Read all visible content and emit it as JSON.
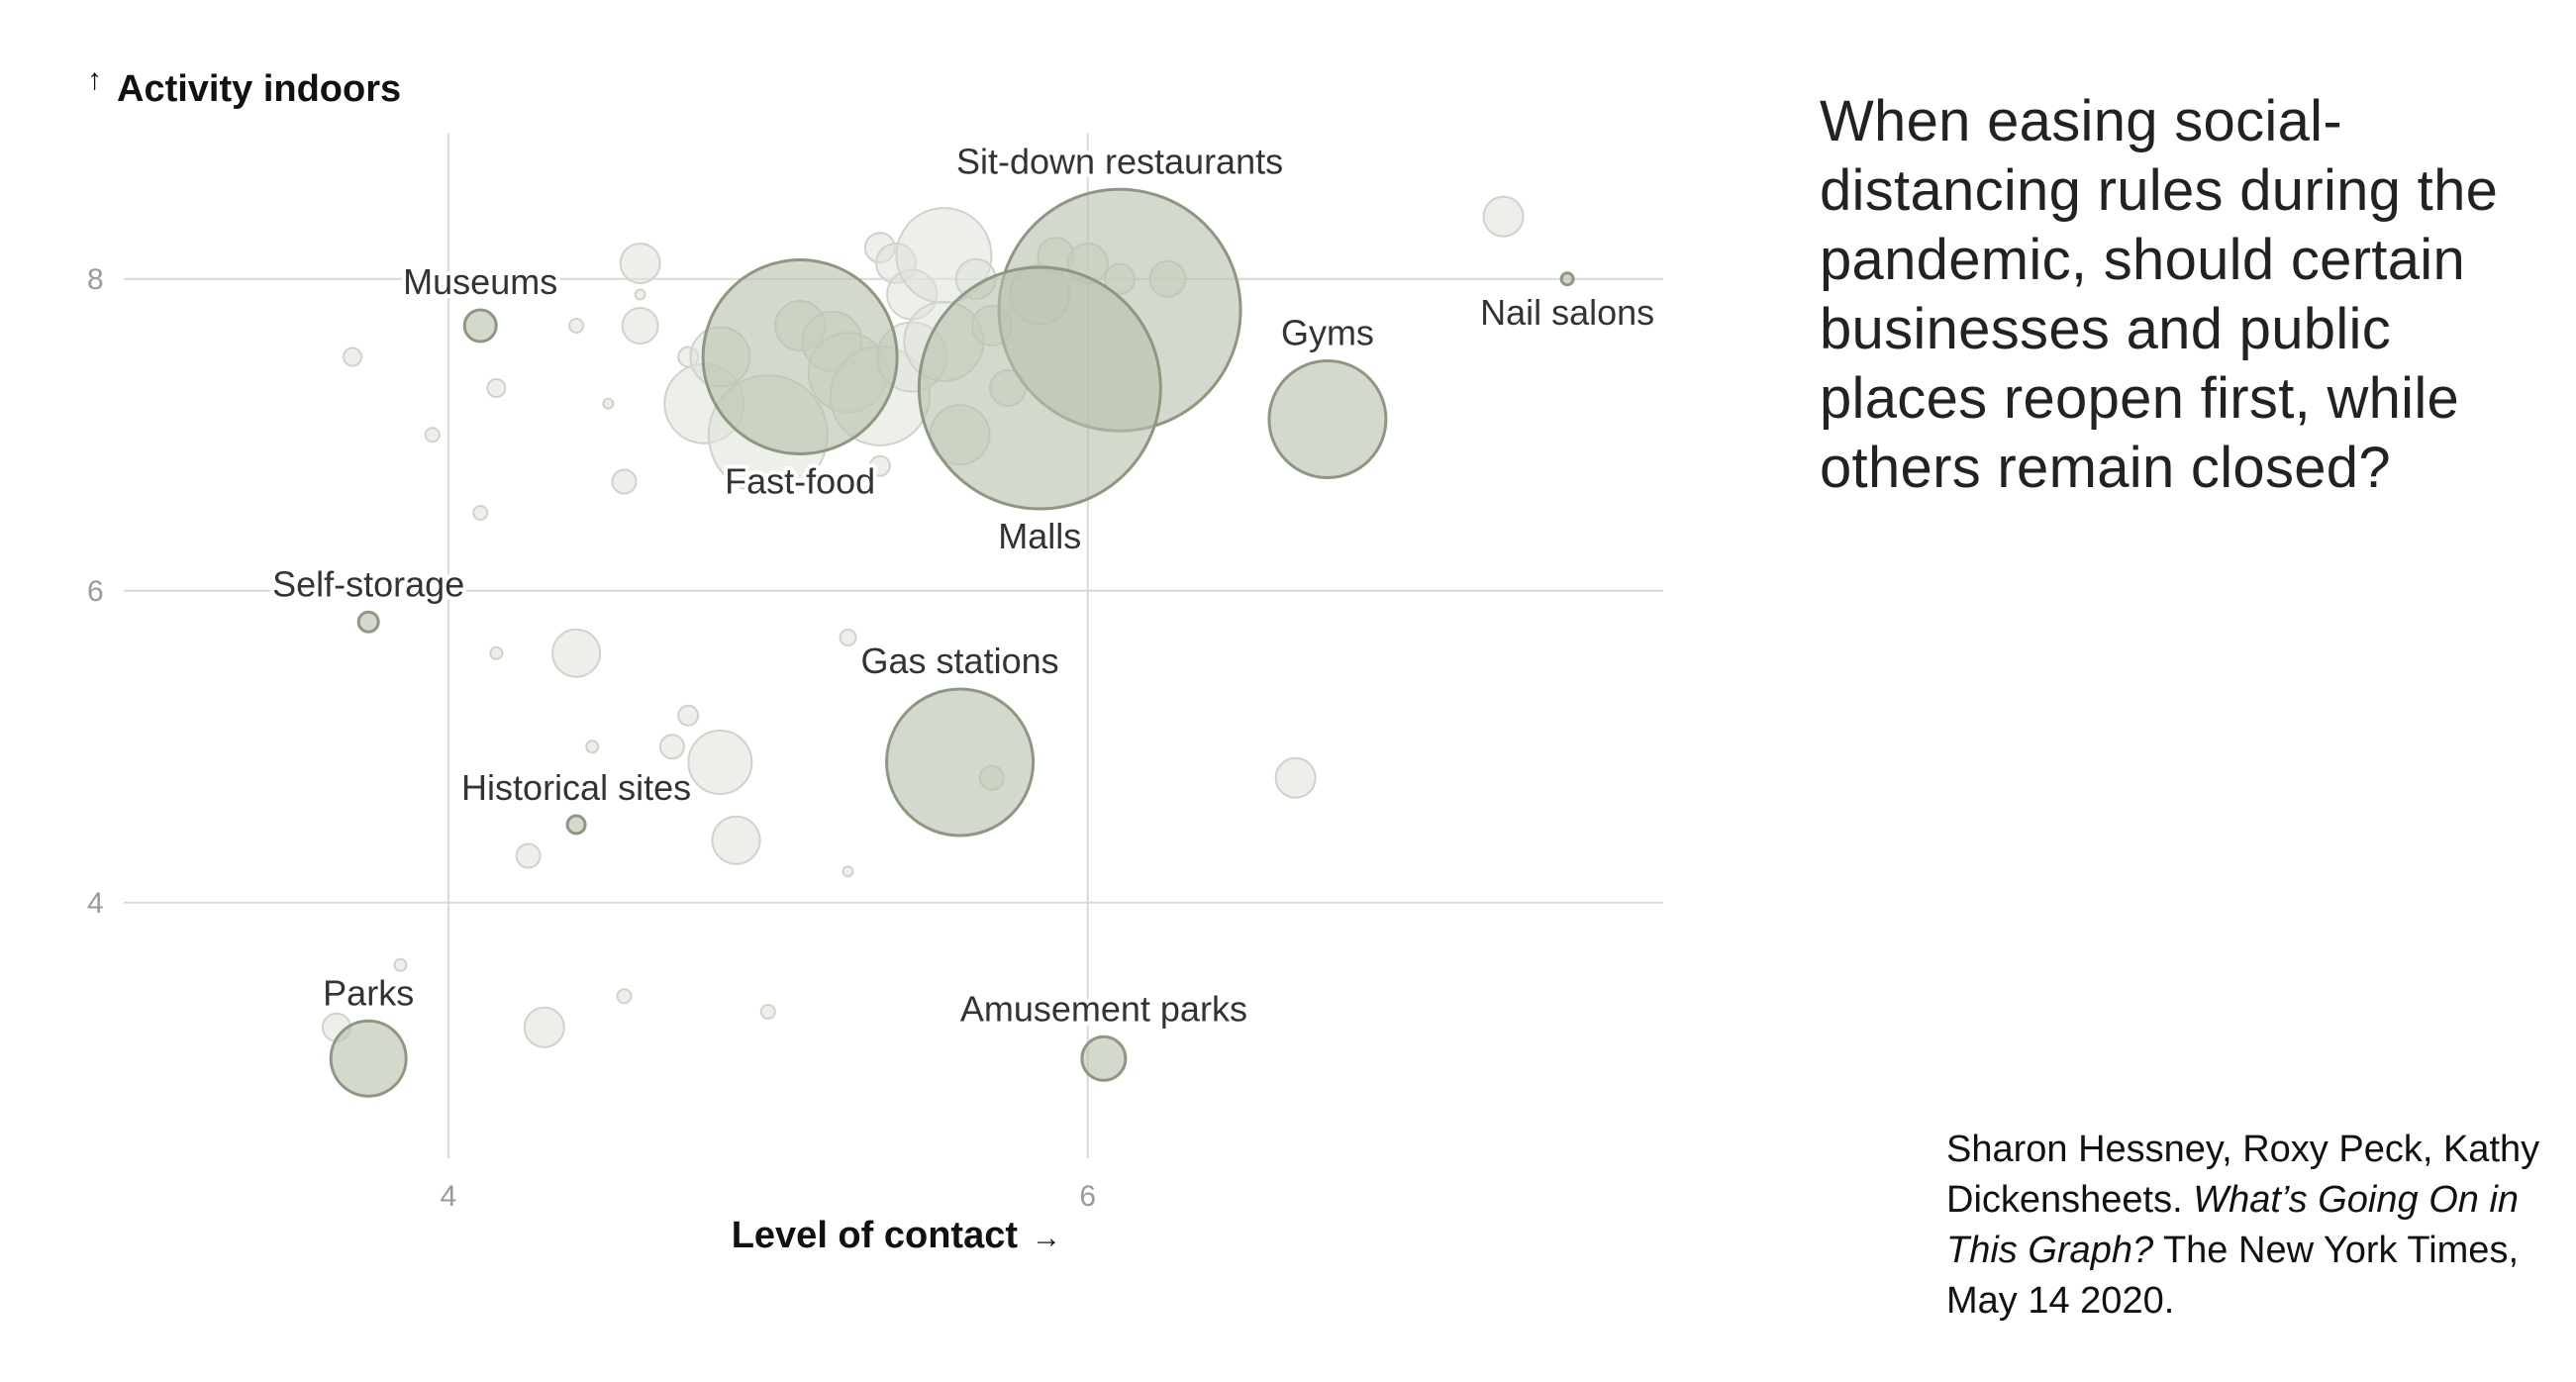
{
  "chart_data": {
    "type": "scatter",
    "title": "",
    "xlabel": "Level of contact",
    "ylabel": "Activity indoors",
    "x_ticks": [
      "4",
      "6"
    ],
    "y_ticks": [
      "8",
      "6",
      "4"
    ],
    "xlim": [
      3.0,
      7.8
    ],
    "ylim": [
      2.5,
      8.9
    ],
    "grid": true,
    "point_color": "#b8c2ac",
    "point_stroke": "#8c9980",
    "background_point_color": "#dfe2da",
    "labeled_points": [
      {
        "name": "Museums",
        "x": 4.1,
        "y": 7.7,
        "size": 16,
        "label_pos": "above"
      },
      {
        "name": "Self-storage",
        "x": 3.75,
        "y": 5.8,
        "size": 10,
        "label_pos": "above"
      },
      {
        "name": "Historical sites",
        "x": 4.4,
        "y": 4.5,
        "size": 9,
        "label_pos": "above"
      },
      {
        "name": "Parks",
        "x": 3.75,
        "y": 3.0,
        "size": 38,
        "label_pos": "above"
      },
      {
        "name": "Fast-food",
        "x": 5.1,
        "y": 7.5,
        "size": 98,
        "label_pos": "below"
      },
      {
        "name": "Sit-down restaurants",
        "x": 6.1,
        "y": 7.8,
        "size": 122,
        "label_pos": "above"
      },
      {
        "name": "Malls",
        "x": 5.85,
        "y": 7.3,
        "size": 122,
        "label_pos": "below"
      },
      {
        "name": "Gyms",
        "x": 6.75,
        "y": 7.1,
        "size": 59,
        "label_pos": "above"
      },
      {
        "name": "Nail salons",
        "x": 7.5,
        "y": 8.0,
        "size": 6,
        "label_pos": "below"
      },
      {
        "name": "Gas stations",
        "x": 5.6,
        "y": 4.9,
        "size": 74,
        "label_pos": "above"
      },
      {
        "name": "Amusement parks",
        "x": 6.05,
        "y": 3.0,
        "size": 22,
        "label_pos": "above"
      }
    ],
    "background_points": [
      {
        "x": 3.7,
        "y": 7.5,
        "size": 9
      },
      {
        "x": 3.95,
        "y": 7.0,
        "size": 7
      },
      {
        "x": 4.15,
        "y": 7.3,
        "size": 9
      },
      {
        "x": 4.1,
        "y": 6.5,
        "size": 7
      },
      {
        "x": 4.4,
        "y": 7.7,
        "size": 7
      },
      {
        "x": 4.5,
        "y": 7.2,
        "size": 5
      },
      {
        "x": 4.55,
        "y": 6.7,
        "size": 12
      },
      {
        "x": 4.6,
        "y": 8.1,
        "size": 20
      },
      {
        "x": 4.6,
        "y": 7.7,
        "size": 18
      },
      {
        "x": 4.6,
        "y": 7.9,
        "size": 5
      },
      {
        "x": 4.75,
        "y": 7.5,
        "size": 10
      },
      {
        "x": 4.8,
        "y": 7.2,
        "size": 40
      },
      {
        "x": 4.85,
        "y": 7.5,
        "size": 30
      },
      {
        "x": 5.0,
        "y": 7.0,
        "size": 60
      },
      {
        "x": 5.1,
        "y": 7.7,
        "size": 25
      },
      {
        "x": 5.2,
        "y": 7.6,
        "size": 30
      },
      {
        "x": 5.25,
        "y": 7.4,
        "size": 40
      },
      {
        "x": 5.35,
        "y": 7.25,
        "size": 50
      },
      {
        "x": 5.35,
        "y": 8.2,
        "size": 15
      },
      {
        "x": 5.4,
        "y": 8.1,
        "size": 20
      },
      {
        "x": 5.45,
        "y": 7.9,
        "size": 25
      },
      {
        "x": 5.45,
        "y": 7.5,
        "size": 35
      },
      {
        "x": 5.55,
        "y": 8.15,
        "size": 48
      },
      {
        "x": 5.55,
        "y": 7.6,
        "size": 40
      },
      {
        "x": 5.6,
        "y": 7.0,
        "size": 30
      },
      {
        "x": 5.65,
        "y": 8.0,
        "size": 20
      },
      {
        "x": 5.7,
        "y": 7.7,
        "size": 20
      },
      {
        "x": 5.75,
        "y": 7.3,
        "size": 18
      },
      {
        "x": 5.85,
        "y": 7.9,
        "size": 30
      },
      {
        "x": 5.9,
        "y": 8.15,
        "size": 18
      },
      {
        "x": 6.0,
        "y": 8.1,
        "size": 20
      },
      {
        "x": 6.1,
        "y": 8.0,
        "size": 15
      },
      {
        "x": 6.25,
        "y": 8.0,
        "size": 18
      },
      {
        "x": 5.35,
        "y": 6.8,
        "size": 10
      },
      {
        "x": 4.4,
        "y": 5.6,
        "size": 24
      },
      {
        "x": 4.15,
        "y": 5.6,
        "size": 6
      },
      {
        "x": 4.75,
        "y": 5.2,
        "size": 10
      },
      {
        "x": 4.7,
        "y": 5.0,
        "size": 12
      },
      {
        "x": 4.45,
        "y": 5.0,
        "size": 6
      },
      {
        "x": 4.85,
        "y": 4.9,
        "size": 32
      },
      {
        "x": 4.9,
        "y": 4.4,
        "size": 24
      },
      {
        "x": 4.25,
        "y": 4.3,
        "size": 12
      },
      {
        "x": 5.25,
        "y": 5.7,
        "size": 8
      },
      {
        "x": 5.25,
        "y": 4.2,
        "size": 5
      },
      {
        "x": 5.7,
        "y": 4.8,
        "size": 12
      },
      {
        "x": 6.65,
        "y": 4.8,
        "size": 20
      },
      {
        "x": 7.3,
        "y": 8.4,
        "size": 20
      },
      {
        "x": 3.85,
        "y": 3.6,
        "size": 6
      },
      {
        "x": 3.65,
        "y": 3.2,
        "size": 14
      },
      {
        "x": 4.3,
        "y": 3.2,
        "size": 20
      },
      {
        "x": 4.55,
        "y": 3.4,
        "size": 7
      },
      {
        "x": 5.0,
        "y": 3.3,
        "size": 7
      }
    ]
  },
  "side_text": {
    "question": "When easing social-distancing rules during the pandemic, should certain businesses and public places reopen first, while others remain closed?",
    "citation_authors": "Sharon Hessney, Roxy Peck, Kathy Dickensheets. ",
    "citation_title": "What’s Going On in This Graph?",
    "citation_source": " The New York Times, May 14 2020."
  }
}
